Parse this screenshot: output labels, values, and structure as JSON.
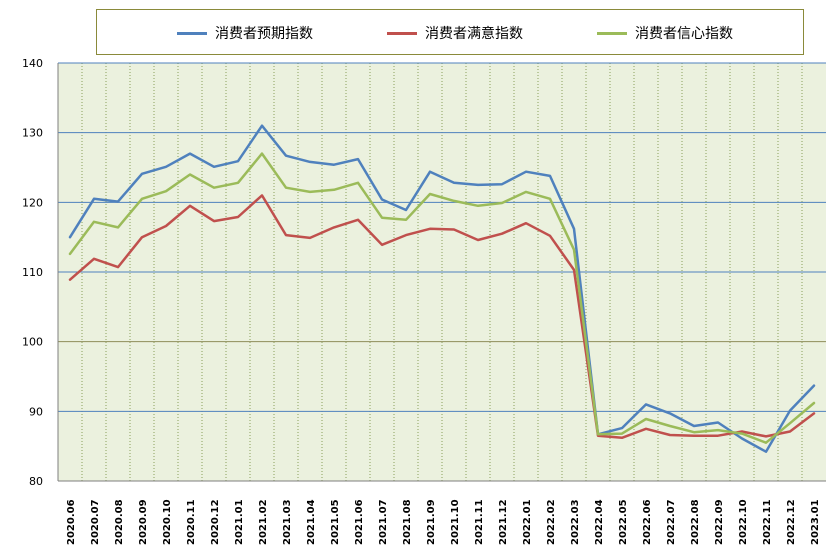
{
  "chart_data": {
    "type": "line",
    "title": "",
    "xlabel": "",
    "ylabel": "",
    "ylim": [
      80,
      140
    ],
    "yticks": [
      80,
      90,
      100,
      110,
      120,
      130,
      140
    ],
    "grid": true,
    "legend_position": "top",
    "categories": [
      "2020.06",
      "2020.07",
      "2020.08",
      "2020.09",
      "2020.10",
      "2020.11",
      "2020.12",
      "2021.01",
      "2021.02",
      "2021.03",
      "2021.04",
      "2021.05",
      "2021.06",
      "2021.07",
      "2021.08",
      "2021.09",
      "2021.10",
      "2021.11",
      "2021.12",
      "2022.01",
      "2022.02",
      "2022.03",
      "2022.04",
      "2022.05",
      "2022.06",
      "2022.07",
      "2022.08",
      "2022.09",
      "2022.10",
      "2022.11",
      "2022.12",
      "2023.01"
    ],
    "series": [
      {
        "name": "消费者预期指数",
        "color": "#4f81bd",
        "values": [
          115.0,
          120.5,
          120.1,
          124.1,
          125.1,
          127.0,
          125.1,
          125.9,
          131.0,
          126.7,
          125.8,
          125.4,
          126.2,
          120.4,
          118.9,
          124.4,
          122.8,
          122.5,
          122.6,
          124.4,
          123.8,
          116.2,
          86.7,
          87.6,
          91.0,
          89.7,
          87.9,
          88.4,
          86.1,
          84.2,
          90.1,
          93.7
        ]
      },
      {
        "name": "消费者满意指数",
        "color": "#c0504d",
        "values": [
          108.9,
          111.9,
          110.7,
          115.0,
          116.6,
          119.5,
          117.3,
          117.9,
          121.0,
          115.3,
          114.9,
          116.4,
          117.5,
          113.9,
          115.3,
          116.2,
          116.1,
          114.6,
          115.5,
          117.0,
          115.2,
          110.3,
          86.5,
          86.2,
          87.5,
          86.6,
          86.5,
          86.5,
          87.1,
          86.4,
          87.1,
          89.7
        ]
      },
      {
        "name": "消费者信心指数",
        "color": "#9bbb59",
        "values": [
          112.6,
          117.2,
          116.4,
          120.5,
          121.6,
          124.0,
          122.1,
          122.8,
          127.0,
          122.1,
          121.5,
          121.8,
          122.8,
          117.8,
          117.5,
          121.2,
          120.2,
          119.5,
          119.9,
          121.5,
          120.5,
          113.2,
          86.7,
          86.8,
          88.9,
          87.9,
          87.0,
          87.3,
          86.8,
          85.5,
          88.3,
          91.2
        ]
      }
    ]
  }
}
